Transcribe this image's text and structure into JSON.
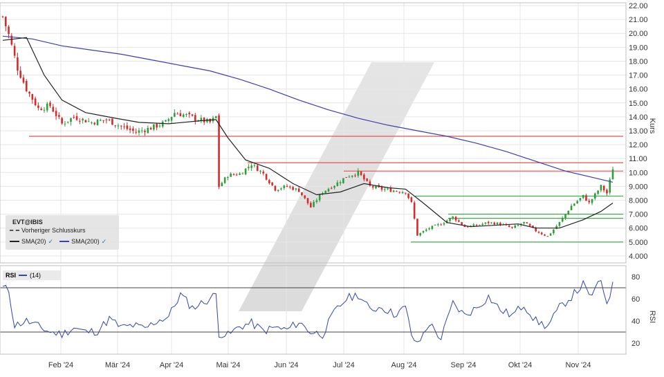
{
  "colors": {
    "up": "#2e9e3a",
    "down": "#d42a2a",
    "sma20": "#222222",
    "sma200": "#3d3db0",
    "rsi": "#3344aa",
    "resistance": "#e05555",
    "support": "#3cb04a",
    "grid": "#e6e6e6"
  },
  "legend": {
    "symbol": "EVT@IBIS",
    "prev_close": "Vorheriger Schlusskurs",
    "sma20": "SMA(20)",
    "sma200": "SMA(200)",
    "check": "✓"
  },
  "rsi_legend": {
    "label": "RSI",
    "param": "(14)"
  },
  "chart_data": [
    {
      "type": "candlestick",
      "ylabel": "Kurs",
      "ylim": [
        3.5,
        22.2
      ],
      "y_ticks": [
        "4.000",
        "5.000",
        "6.000",
        "7.000",
        "8.000",
        "9.000",
        "10.00",
        "11.00",
        "12.00",
        "13.00",
        "14.00",
        "15.00",
        "16.00",
        "17.00",
        "18.00",
        "19.00",
        "20.00",
        "21.00",
        "22.00"
      ],
      "x_ticks": [
        "Feb '24",
        "Mär '24",
        "Apr '24",
        "Mai '24",
        "Jun '24",
        "Jul '24",
        "Aug '24",
        "Sep '24",
        "Okt '24",
        "Nov '24"
      ],
      "horizontal_levels": {
        "resistance": [
          12.6,
          10.7,
          10.1
        ],
        "support": [
          8.3,
          7.0,
          6.7,
          5.0
        ]
      },
      "close_path": [
        [
          0,
          21.2
        ],
        [
          2,
          19.9
        ],
        [
          5,
          17.5
        ],
        [
          8,
          16.0
        ],
        [
          12,
          14.6
        ],
        [
          16,
          14.8
        ],
        [
          20,
          13.5
        ],
        [
          24,
          14.0
        ],
        [
          30,
          13.6
        ],
        [
          35,
          13.8
        ],
        [
          40,
          13.3
        ],
        [
          45,
          12.9
        ],
        [
          50,
          13.2
        ],
        [
          55,
          13.6
        ],
        [
          58,
          14.3
        ],
        [
          62,
          14.1
        ],
        [
          66,
          13.8
        ],
        [
          70,
          13.6
        ],
        [
          72,
          14.0
        ],
        [
          73,
          9.0
        ],
        [
          76,
          9.8
        ],
        [
          80,
          9.9
        ],
        [
          84,
          10.6
        ],
        [
          88,
          9.9
        ],
        [
          92,
          8.8
        ],
        [
          96,
          9.0
        ],
        [
          100,
          8.7
        ],
        [
          104,
          7.5
        ],
        [
          108,
          8.6
        ],
        [
          112,
          9.1
        ],
        [
          116,
          9.7
        ],
        [
          120,
          10.0
        ],
        [
          124,
          9.0
        ],
        [
          128,
          8.8
        ],
        [
          132,
          8.7
        ],
        [
          136,
          8.6
        ],
        [
          138,
          7.8
        ],
        [
          140,
          5.5
        ],
        [
          144,
          6.0
        ],
        [
          148,
          6.3
        ],
        [
          152,
          6.8
        ],
        [
          156,
          6.1
        ],
        [
          160,
          6.2
        ],
        [
          164,
          6.4
        ],
        [
          168,
          6.3
        ],
        [
          172,
          6.0
        ],
        [
          176,
          6.4
        ],
        [
          180,
          5.8
        ],
        [
          184,
          5.4
        ],
        [
          188,
          6.4
        ],
        [
          192,
          7.6
        ],
        [
          196,
          8.3
        ],
        [
          198,
          7.8
        ],
        [
          200,
          8.4
        ],
        [
          202,
          9.0
        ],
        [
          204,
          8.5
        ],
        [
          206,
          10.3
        ]
      ],
      "sma20": [
        [
          0,
          19.5
        ],
        [
          8,
          19.7
        ],
        [
          14,
          17.0
        ],
        [
          20,
          15.2
        ],
        [
          28,
          14.3
        ],
        [
          38,
          13.9
        ],
        [
          46,
          13.6
        ],
        [
          56,
          13.5
        ],
        [
          66,
          13.7
        ],
        [
          72,
          13.8
        ],
        [
          76,
          12.5
        ],
        [
          82,
          10.9
        ],
        [
          90,
          10.3
        ],
        [
          98,
          9.2
        ],
        [
          106,
          8.4
        ],
        [
          114,
          8.6
        ],
        [
          122,
          9.2
        ],
        [
          130,
          8.9
        ],
        [
          136,
          8.8
        ],
        [
          142,
          7.8
        ],
        [
          150,
          6.4
        ],
        [
          158,
          6.1
        ],
        [
          166,
          6.2
        ],
        [
          174,
          6.3
        ],
        [
          180,
          6.0
        ],
        [
          188,
          6.0
        ],
        [
          196,
          6.6
        ],
        [
          202,
          7.2
        ],
        [
          206,
          7.8
        ]
      ],
      "sma200": [
        [
          0,
          19.8
        ],
        [
          10,
          19.6
        ],
        [
          20,
          19.1
        ],
        [
          30,
          18.8
        ],
        [
          40,
          18.5
        ],
        [
          50,
          18.1
        ],
        [
          60,
          17.7
        ],
        [
          70,
          17.3
        ],
        [
          80,
          16.7
        ],
        [
          90,
          16.0
        ],
        [
          100,
          15.2
        ],
        [
          110,
          14.5
        ],
        [
          120,
          13.9
        ],
        [
          130,
          13.4
        ],
        [
          140,
          13.0
        ],
        [
          150,
          12.6
        ],
        [
          160,
          12.1
        ],
        [
          170,
          11.5
        ],
        [
          180,
          10.8
        ],
        [
          190,
          10.1
        ],
        [
          200,
          9.6
        ],
        [
          206,
          9.3
        ]
      ]
    },
    {
      "type": "line",
      "title": "RSI",
      "ylabel": "RSI",
      "ylim": [
        10,
        90
      ],
      "y_ticks": [
        "20",
        "40",
        "60",
        "80"
      ],
      "levels": [
        70,
        30
      ],
      "values": [
        [
          0,
          70
        ],
        [
          2,
          68
        ],
        [
          4,
          36
        ],
        [
          8,
          40
        ],
        [
          12,
          35
        ],
        [
          16,
          30
        ],
        [
          20,
          28
        ],
        [
          24,
          34
        ],
        [
          28,
          30
        ],
        [
          32,
          31
        ],
        [
          36,
          42
        ],
        [
          40,
          34
        ],
        [
          44,
          36
        ],
        [
          48,
          33
        ],
        [
          52,
          40
        ],
        [
          56,
          44
        ],
        [
          60,
          64
        ],
        [
          64,
          52
        ],
        [
          68,
          57
        ],
        [
          72,
          64
        ],
        [
          73,
          29
        ],
        [
          76,
          27
        ],
        [
          80,
          35
        ],
        [
          84,
          38
        ],
        [
          88,
          31
        ],
        [
          92,
          34
        ],
        [
          96,
          32
        ],
        [
          100,
          39
        ],
        [
          104,
          30
        ],
        [
          108,
          28
        ],
        [
          112,
          48
        ],
        [
          116,
          60
        ],
        [
          120,
          64
        ],
        [
          124,
          50
        ],
        [
          128,
          53
        ],
        [
          132,
          46
        ],
        [
          136,
          52
        ],
        [
          138,
          28
        ],
        [
          140,
          18
        ],
        [
          144,
          38
        ],
        [
          148,
          24
        ],
        [
          152,
          56
        ],
        [
          156,
          45
        ],
        [
          160,
          52
        ],
        [
          164,
          62
        ],
        [
          168,
          50
        ],
        [
          172,
          45
        ],
        [
          176,
          55
        ],
        [
          180,
          40
        ],
        [
          184,
          35
        ],
        [
          188,
          52
        ],
        [
          192,
          62
        ],
        [
          196,
          73
        ],
        [
          198,
          62
        ],
        [
          200,
          68
        ],
        [
          202,
          76
        ],
        [
          204,
          57
        ],
        [
          206,
          72
        ]
      ]
    }
  ]
}
